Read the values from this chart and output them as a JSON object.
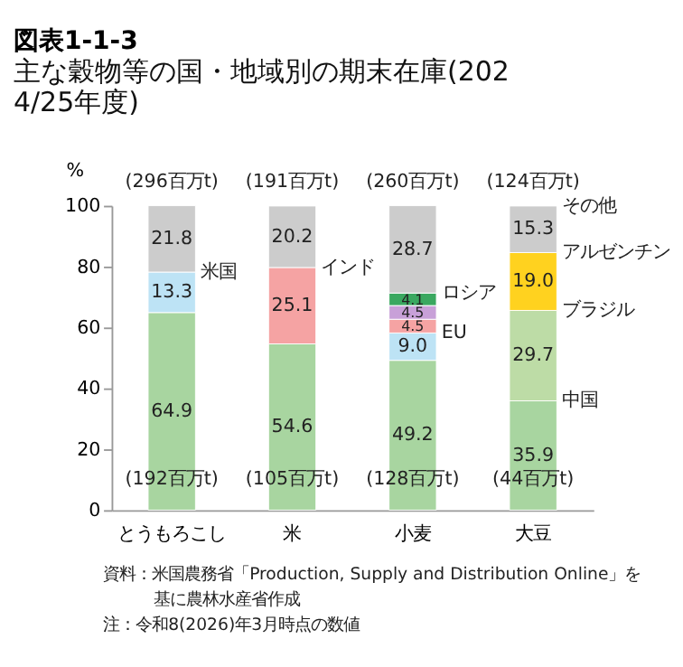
{
  "chart_data": {
    "type": "bar",
    "title": "図表1-1-3",
    "subtitle": "主な穀物等の国・地域別の期末在庫(2024/25年度)",
    "ylabel": "%",
    "categories": [
      "とうもろこし",
      "米",
      "小麦",
      "大豆"
    ],
    "stacked": true,
    "series": [
      {
        "name": "中国",
        "color": "#a8d5a0",
        "values": [
          64.9,
          54.6,
          49.2,
          35.9
        ],
        "value_labels": [
          "64.9",
          "54.6",
          "49.2",
          "35.9"
        ]
      },
      {
        "name": "ブラジル",
        "color": "#bddca6",
        "values": [
          null,
          null,
          null,
          29.7
        ],
        "value_labels": [
          null,
          null,
          null,
          "29.7"
        ]
      },
      {
        "name": "米国",
        "color": "#bde3f5",
        "values": [
          13.3,
          null,
          null,
          null
        ],
        "value_labels": [
          "13.3",
          null,
          null,
          null
        ]
      },
      {
        "name": "EU",
        "color": "#bde3f5",
        "values": [
          null,
          null,
          9.0,
          null
        ],
        "value_labels": [
          null,
          null,
          "9.0",
          null
        ]
      },
      {
        "name": "インド",
        "color": "#f5a3a3",
        "values": [
          null,
          25.1,
          4.5,
          null
        ],
        "value_labels": [
          null,
          "25.1",
          "4.5",
          null
        ]
      },
      {
        "color": "#c8a0d8",
        "values": [
          null,
          null,
          4.5,
          null
        ],
        "value_labels": [
          null,
          null,
          "4.5",
          null
        ]
      },
      {
        "name": "ロシア",
        "color": "#3aa860",
        "values": [
          null,
          null,
          4.1,
          null
        ],
        "value_labels": [
          null,
          null,
          "4.1",
          null
        ]
      },
      {
        "name": "アルゼンチン",
        "color": "#ffd21f",
        "values": [
          null,
          null,
          null,
          19.0
        ],
        "value_labels": [
          null,
          null,
          null,
          "19.0"
        ]
      },
      {
        "name": "その他",
        "color": "#cccccc",
        "values": [
          21.8,
          20.2,
          28.7,
          15.3
        ],
        "value_labels": [
          "21.8",
          "20.2",
          "28.7",
          "15.3"
        ]
      }
    ],
    "ylim": [
      0,
      100
    ],
    "yticks": [
      0,
      20,
      40,
      60,
      80,
      100
    ],
    "grid": false,
    "annotations": [
      "(296百万t)",
      "(191百万t)",
      "(260百万t)",
      "(124百万t)",
      "(192百万t)",
      "(105百万t)",
      "(128百万t)",
      "(44百万t)",
      "資料：米国農務省「Production, Supply and Distribution Online」を基に農林水産省作成",
      "注：令和8(2026)年3月時点の数値"
    ]
  }
}
